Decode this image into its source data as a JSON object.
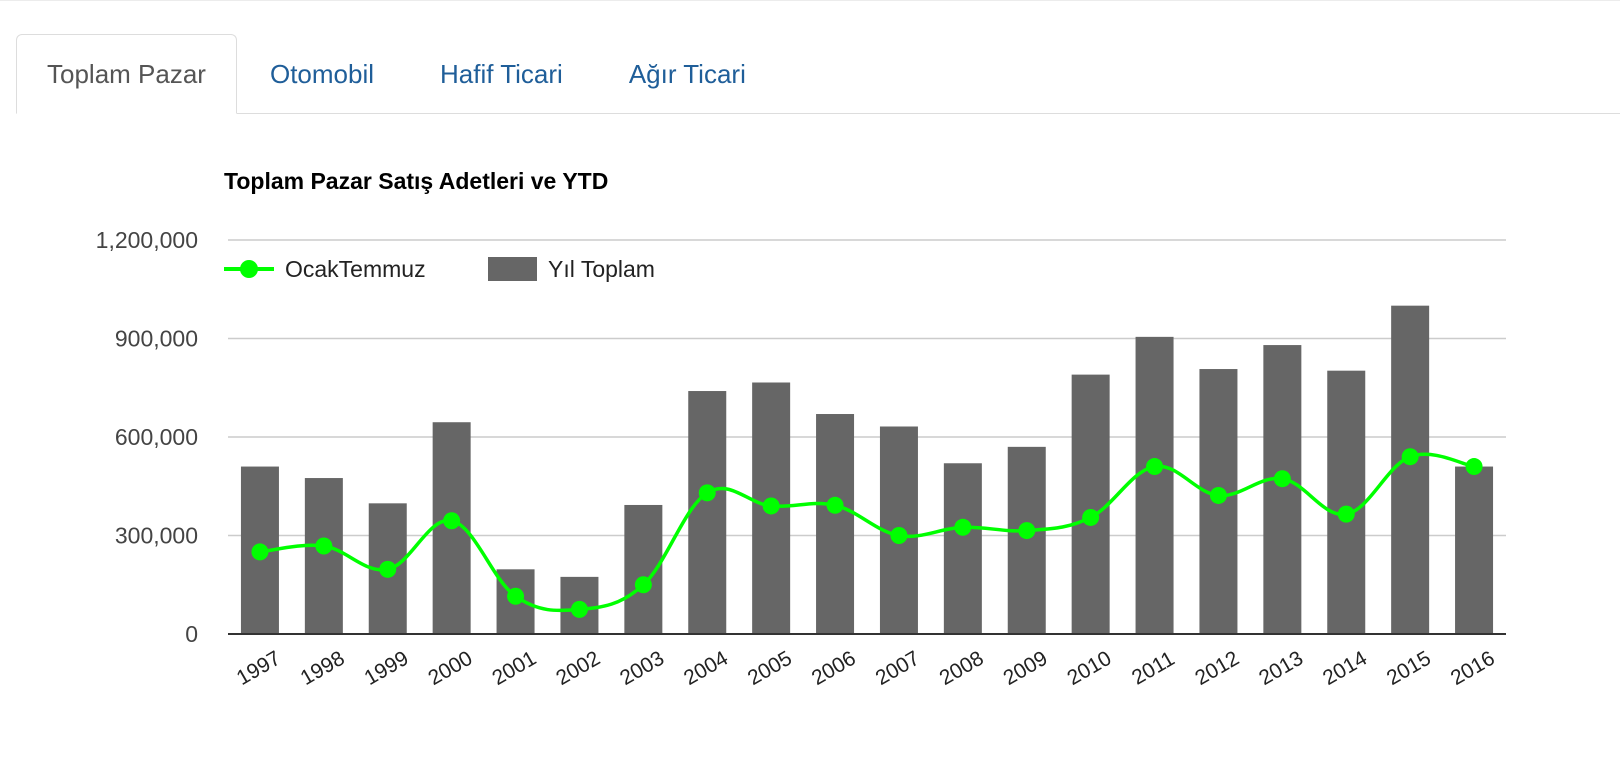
{
  "tabs": [
    {
      "label": "Toplam Pazar",
      "active": true
    },
    {
      "label": "Otomobil",
      "active": false
    },
    {
      "label": "Hafif Ticari",
      "active": false
    },
    {
      "label": "Ağır Ticari",
      "active": false
    }
  ],
  "colors": {
    "bar": "#666666",
    "line": "#00ff00",
    "tab_link": "#1f5e99",
    "grid": "#cccccc"
  },
  "chart_data": {
    "type": "bar",
    "title": "Toplam Pazar Satış Adetleri ve YTD",
    "categories": [
      "1997",
      "1998",
      "1999",
      "2000",
      "2001",
      "2002",
      "2003",
      "2004",
      "2005",
      "2006",
      "2007",
      "2008",
      "2009",
      "2010",
      "2011",
      "2012",
      "2013",
      "2014",
      "2015",
      "2016"
    ],
    "series": [
      {
        "name": "Yıl Toplam",
        "type": "bar",
        "values": [
          510000,
          475000,
          398000,
          645000,
          197000,
          174000,
          393000,
          740000,
          766000,
          670000,
          632000,
          520000,
          570000,
          790000,
          905000,
          807000,
          880000,
          802000,
          1000000,
          510000
        ]
      },
      {
        "name": "OcakTemmuz",
        "type": "line",
        "values": [
          250000,
          268000,
          197000,
          345000,
          115000,
          75000,
          150000,
          430000,
          390000,
          392000,
          300000,
          325000,
          315000,
          355000,
          510000,
          422000,
          473000,
          365000,
          540000,
          510000
        ]
      }
    ],
    "yticks": [
      "0",
      "300,000",
      "600,000",
      "900,000",
      "1,200,000"
    ],
    "ylim": [
      0,
      1200000
    ],
    "grid": true,
    "legend_position": "top-left"
  }
}
